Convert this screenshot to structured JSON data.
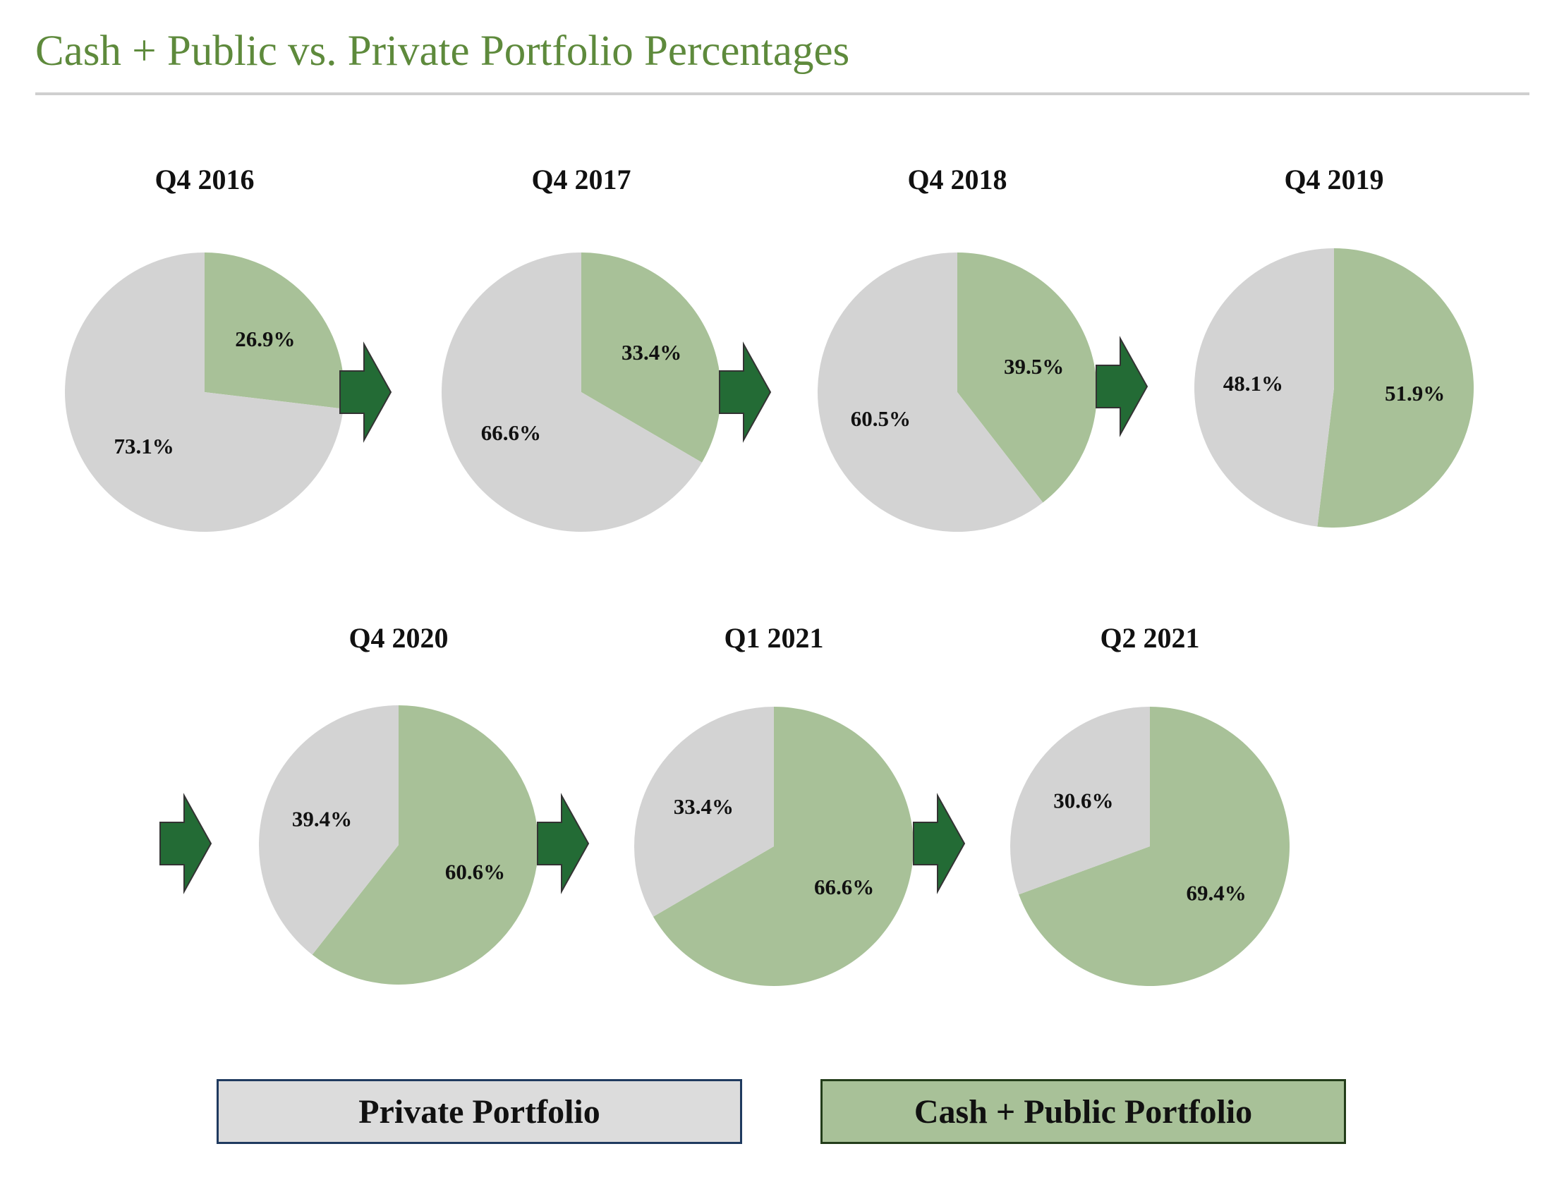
{
  "title": "Cash + Public vs. Private Portfolio Percentages",
  "colors": {
    "title": "#5e8a3c",
    "private": "#d3d3d3",
    "cash_public": "#a8c198",
    "arrow": "#236b35",
    "rule": "#cfcfcf"
  },
  "legend": {
    "private_label": "Private Portfolio",
    "public_label": "Cash + Public Portfolio"
  },
  "chart_data": [
    {
      "type": "pie",
      "title": "Q4 2016",
      "series": [
        {
          "name": "Cash + Public Portfolio",
          "value": 26.9,
          "label": "26.9%"
        },
        {
          "name": "Private Portfolio",
          "value": 73.1,
          "label": "73.1%"
        }
      ]
    },
    {
      "type": "pie",
      "title": "Q4 2017",
      "series": [
        {
          "name": "Cash + Public Portfolio",
          "value": 33.4,
          "label": "33.4%"
        },
        {
          "name": "Private Portfolio",
          "value": 66.6,
          "label": "66.6%"
        }
      ]
    },
    {
      "type": "pie",
      "title": "Q4 2018",
      "series": [
        {
          "name": "Cash + Public Portfolio",
          "value": 39.5,
          "label": "39.5%"
        },
        {
          "name": "Private Portfolio",
          "value": 60.5,
          "label": "60.5%"
        }
      ]
    },
    {
      "type": "pie",
      "title": "Q4 2019",
      "series": [
        {
          "name": "Cash + Public Portfolio",
          "value": 51.9,
          "label": "51.9%"
        },
        {
          "name": "Private Portfolio",
          "value": 48.1,
          "label": "48.1%"
        }
      ]
    },
    {
      "type": "pie",
      "title": "Q4 2020",
      "series": [
        {
          "name": "Cash + Public Portfolio",
          "value": 60.6,
          "label": "60.6%"
        },
        {
          "name": "Private Portfolio",
          "value": 39.4,
          "label": "39.4%"
        }
      ]
    },
    {
      "type": "pie",
      "title": "Q1 2021",
      "series": [
        {
          "name": "Cash + Public Portfolio",
          "value": 66.6,
          "label": "66.6%"
        },
        {
          "name": "Private Portfolio",
          "value": 33.4,
          "label": "33.4%"
        }
      ]
    },
    {
      "type": "pie",
      "title": "Q2 2021",
      "series": [
        {
          "name": "Cash + Public Portfolio",
          "value": 69.4,
          "label": "69.4%"
        },
        {
          "name": "Private Portfolio",
          "value": 30.6,
          "label": "30.6%"
        }
      ]
    }
  ]
}
